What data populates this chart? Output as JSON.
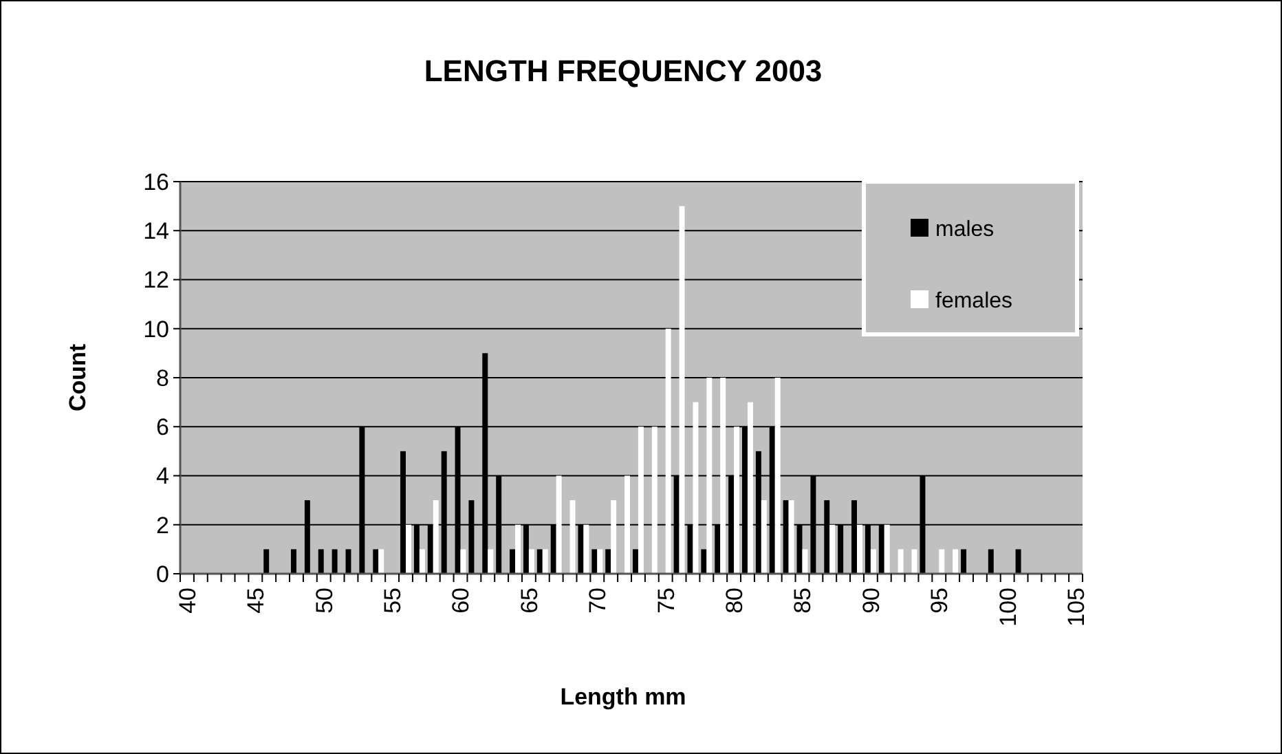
{
  "chart_data": {
    "type": "bar",
    "title": "LENGTH FREQUENCY 2003",
    "xlabel": "Length mm",
    "ylabel": "Count",
    "categories": [
      "40",
      null,
      null,
      null,
      null,
      "45",
      null,
      null,
      null,
      null,
      "50",
      null,
      null,
      null,
      null,
      "55",
      null,
      null,
      null,
      null,
      "60",
      null,
      null,
      null,
      null,
      "65",
      null,
      null,
      null,
      null,
      "70",
      null,
      null,
      null,
      null,
      "75",
      null,
      null,
      null,
      null,
      "80",
      null,
      null,
      null,
      null,
      "85",
      null,
      null,
      null,
      null,
      "90",
      null,
      null,
      null,
      null,
      "95",
      null,
      null,
      null,
      null,
      "100",
      null,
      null,
      null,
      null,
      "105"
    ],
    "series": [
      {
        "name": "males",
        "color": "#000000",
        "values": [
          0,
          0,
          0,
          0,
          0,
          0,
          1,
          0,
          1,
          3,
          1,
          1,
          1,
          6,
          1,
          0,
          5,
          2,
          2,
          5,
          6,
          3,
          9,
          4,
          1,
          2,
          1,
          2,
          0,
          2,
          1,
          1,
          0,
          1,
          0,
          0,
          4,
          2,
          1,
          2,
          4,
          6,
          5,
          6,
          3,
          2,
          4,
          3,
          2,
          3,
          2,
          2,
          0,
          0,
          4,
          0,
          0,
          1,
          0,
          1,
          0,
          1,
          0,
          0,
          0,
          0
        ]
      },
      {
        "name": "females",
        "color": "#ffffff",
        "values": [
          0,
          0,
          0,
          0,
          0,
          0,
          0,
          0,
          0,
          0,
          0,
          0,
          0,
          0,
          1,
          0,
          2,
          1,
          3,
          0,
          1,
          0,
          1,
          0,
          2,
          1,
          1,
          4,
          3,
          2,
          1,
          3,
          4,
          6,
          6,
          10,
          15,
          7,
          8,
          8,
          6,
          7,
          3,
          8,
          3,
          1,
          0,
          2,
          0,
          2,
          1,
          2,
          1,
          1,
          0,
          1,
          1,
          0,
          0,
          0,
          0,
          0,
          0,
          0,
          0,
          0
        ]
      }
    ],
    "ylim": [
      0,
      16
    ],
    "yticks": [
      0,
      2,
      4,
      6,
      8,
      10,
      12,
      14,
      16
    ],
    "grid": "y",
    "legend": "top right"
  }
}
